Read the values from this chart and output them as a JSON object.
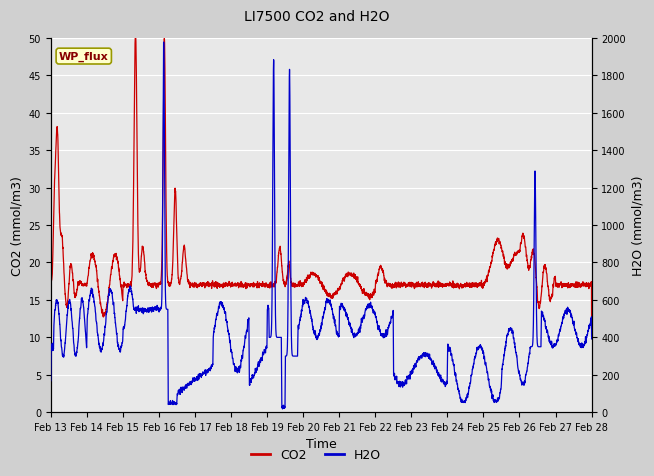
{
  "title": "LI7500 CO2 and H2O",
  "xlabel": "Time",
  "ylabel_left": "CO2 (mmol/m3)",
  "ylabel_right": "H2O (mmol/m3)",
  "co2_color": "#cc0000",
  "h2o_color": "#0000cc",
  "fig_facecolor": "#d0d0d0",
  "plot_facecolor": "#e8e8e8",
  "ylim_left": [
    0,
    50
  ],
  "ylim_right": [
    0,
    2000
  ],
  "station_label": "WP_flux",
  "station_label_bg": "#ffffcc",
  "station_label_border": "#cccc00",
  "legend_co2": "CO2",
  "legend_h2o": "H2O",
  "xtick_labels": [
    "Feb 13",
    "Feb 14",
    "Feb 15",
    "Feb 16",
    "Feb 17",
    "Feb 18",
    "Feb 19",
    "Feb 20",
    "Feb 21",
    "Feb 22",
    "Feb 23",
    "Feb 24",
    "Feb 25",
    "Feb 26",
    "Feb 27",
    "Feb 28"
  ],
  "yticks_left": [
    0,
    5,
    10,
    15,
    20,
    25,
    30,
    35,
    40,
    45,
    50
  ],
  "yticks_right": [
    0,
    200,
    400,
    600,
    800,
    1000,
    1200,
    1400,
    1600,
    1800,
    2000
  ],
  "n_points": 5000,
  "seed": 42
}
